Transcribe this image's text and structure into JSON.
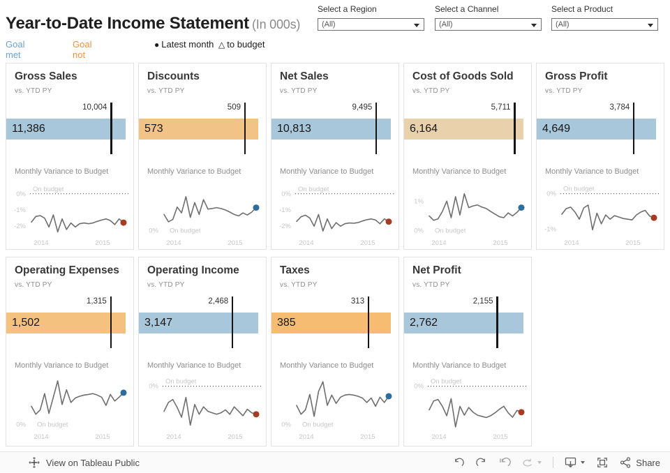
{
  "header": {
    "title": "Year-to-Date Income Statement",
    "subtitle": "(In 000s)",
    "legend": {
      "goal_met": "Goal met",
      "goal_not_met": "Goal not met",
      "latest_dot_glyph": "●",
      "latest_text": "Latest month",
      "latest_triangle_glyph": "△",
      "latest_suffix": "to budget"
    },
    "filters": [
      {
        "label": "Select a Region",
        "value": "(All)"
      },
      {
        "label": "Select a Channel",
        "value": "(All)"
      },
      {
        "label": "Select a Product",
        "value": "(All)"
      }
    ]
  },
  "palette": {
    "goal_met_text": "#6aa3d8",
    "goal_not_met_text": "#f5913d",
    "bar_blue": "#a9c7da",
    "spark_line": "#6e6e6e",
    "dot_red": "#a63c21",
    "dot_blue": "#2e6e9e",
    "axis_text": "#c6c6c6"
  },
  "chart_data": [
    {
      "type": "bullet+sparkline",
      "title": "Gross Sales",
      "compare_label": "vs. YTD PY",
      "bullet": {
        "value": 11386,
        "value_label": "11,386",
        "reference": 10004,
        "reference_label": "10,004",
        "bar_color": "#a9c7da",
        "status": "goal_met"
      },
      "sparkline": {
        "label": "Monthly Variance to Budget",
        "unit": "%",
        "ylim": [
          -2.55,
          0.55
        ],
        "zero": "top",
        "on_budget_label": "On budget",
        "ticks": [
          {
            "label": "0%",
            "value": 0
          },
          {
            "label": "-1%",
            "value": -1
          },
          {
            "label": "-2%",
            "value": -2
          }
        ],
        "x_labels": [
          "2014",
          "2015"
        ],
        "dot_color": "#a63c21",
        "values": [
          -1.75,
          -1.4,
          -1.35,
          -1.5,
          -2.05,
          -1.3,
          -2.35,
          -1.55,
          -2.2,
          -1.8,
          -2.05,
          -1.85,
          -1.8,
          -1.85,
          -1.8,
          -1.7,
          -1.62,
          -1.55,
          -1.65,
          -1.9,
          -1.55,
          -1.78
        ]
      }
    },
    {
      "type": "bullet+sparkline",
      "title": "Discounts",
      "compare_label": "vs. YTD PY",
      "bullet": {
        "value": 573,
        "value_label": "573",
        "reference": 509,
        "reference_label": "509",
        "bar_color": "#f2c386",
        "status": "goal_not_met"
      },
      "sparkline": {
        "label": "Monthly Variance to Budget",
        "unit": "%",
        "ylim": [
          -0.15,
          1.55
        ],
        "zero": "bottom",
        "on_budget_label": "On budget",
        "ticks": [
          {
            "label": "0%",
            "value": 0
          }
        ],
        "x_labels": [
          "2014",
          "2015"
        ],
        "dot_color": "#2e6e9e",
        "values": [
          0.55,
          0.3,
          0.38,
          0.8,
          0.6,
          1.15,
          0.45,
          0.95,
          0.55,
          1.05,
          0.73,
          0.75,
          0.78,
          0.75,
          0.7,
          0.63,
          0.55,
          0.5,
          0.6,
          0.53,
          0.63,
          0.78
        ]
      }
    },
    {
      "type": "bullet+sparkline",
      "title": "Net Sales",
      "compare_label": "vs. YTD PY",
      "bullet": {
        "value": 10813,
        "value_label": "10,813",
        "reference": 9495,
        "reference_label": "9,495",
        "bar_color": "#a9c7da",
        "status": "goal_met"
      },
      "sparkline": {
        "label": "Monthly Variance to Budget",
        "unit": "%",
        "ylim": [
          -2.55,
          0.55
        ],
        "zero": "top",
        "on_budget_label": "On budget",
        "ticks": [
          {
            "label": "0%",
            "value": 0
          },
          {
            "label": "-1%",
            "value": -1
          },
          {
            "label": "-2%",
            "value": -2
          }
        ],
        "x_labels": [
          "2014",
          "2015"
        ],
        "dot_color": "#a63c21",
        "values": [
          -1.7,
          -1.42,
          -1.32,
          -1.5,
          -2.0,
          -1.28,
          -2.3,
          -1.55,
          -2.15,
          -1.78,
          -2.0,
          -1.85,
          -1.8,
          -1.82,
          -1.78,
          -1.68,
          -1.6,
          -1.55,
          -1.62,
          -1.85,
          -1.55,
          -1.72
        ]
      }
    },
    {
      "type": "bullet+sparkline",
      "title": "Cost of Goods Sold",
      "compare_label": "vs. YTD PY",
      "bullet": {
        "value": 6164,
        "value_label": "6,164",
        "reference": 5711,
        "reference_label": "5,711",
        "bar_color": "#e9d1ab",
        "status": "goal_not_met"
      },
      "sparkline": {
        "label": "Monthly Variance to Budget",
        "unit": "%",
        "ylim": [
          -0.15,
          1.55
        ],
        "zero": "bottom",
        "on_budget_label": "On budget",
        "ticks": [
          {
            "label": "1%",
            "value": 1
          },
          {
            "label": "0%",
            "value": 0
          }
        ],
        "x_labels": [
          "2014",
          "2015"
        ],
        "dot_color": "#2e6e9e",
        "values": [
          0.5,
          0.35,
          0.4,
          0.65,
          1.0,
          0.44,
          1.15,
          0.53,
          1.25,
          0.78,
          0.84,
          0.87,
          0.8,
          0.75,
          0.65,
          0.56,
          0.47,
          0.44,
          0.6,
          0.5,
          0.62,
          0.78
        ]
      }
    },
    {
      "type": "bullet+sparkline",
      "title": "Gross Profit",
      "compare_label": "vs. YTD PY",
      "bullet": {
        "value": 4649,
        "value_label": "4,649",
        "reference": 3784,
        "reference_label": "3,784",
        "bar_color": "#a9c7da",
        "status": "goal_met"
      },
      "sparkline": {
        "label": "Monthly Variance to Budget",
        "unit": "%",
        "ylim": [
          -1.17,
          0.25
        ],
        "zero": "top",
        "on_budget_label": "On budget",
        "ticks": [
          {
            "label": "0%",
            "value": 0
          },
          {
            "label": "-1%",
            "value": -1
          }
        ],
        "x_labels": [
          "2014",
          "2015"
        ],
        "dot_color": "#a63c21",
        "values": [
          -0.58,
          -0.42,
          -0.38,
          -0.52,
          -0.72,
          -0.4,
          -0.32,
          -1.02,
          -0.55,
          -0.85,
          -0.6,
          -0.72,
          -0.62,
          -0.66,
          -0.7,
          -0.72,
          -0.74,
          -0.6,
          -0.52,
          -0.47,
          -0.63,
          -0.68
        ]
      }
    },
    {
      "type": "bullet+sparkline",
      "title": "Operating Expenses",
      "compare_label": "vs. YTD PY",
      "bullet": {
        "value": 1502,
        "value_label": "1,502",
        "reference": 1315,
        "reference_label": "1,315",
        "bar_color": "#f4c17e",
        "status": "goal_not_met"
      },
      "sparkline": {
        "label": "Monthly Variance to Budget",
        "unit": "%",
        "ylim": [
          -0.15,
          1.55
        ],
        "zero": "bottom",
        "on_budget_label": "On budget",
        "ticks": [
          {
            "label": "0%",
            "value": 0
          }
        ],
        "x_labels": [
          "2014",
          "2015"
        ],
        "dot_color": "#2e6e9e",
        "values": [
          0.62,
          0.35,
          0.5,
          1.05,
          0.38,
          0.93,
          1.48,
          0.68,
          1.18,
          0.75,
          0.9,
          0.96,
          1.0,
          1.02,
          1.05,
          1.0,
          0.93,
          0.65,
          1.02,
          0.8,
          0.93,
          1.08
        ]
      }
    },
    {
      "type": "bullet+sparkline",
      "title": "Operating Income",
      "compare_label": "vs. YTD PY",
      "bullet": {
        "value": 3147,
        "value_label": "3,147",
        "reference": 2468,
        "reference_label": "2,468",
        "bar_color": "#a9c7da",
        "status": "goal_met"
      },
      "sparkline": {
        "label": "Monthly Variance to Budget",
        "unit": "%",
        "ylim": [
          -1.45,
          0.25
        ],
        "zero": "top",
        "on_budget_label": "On budget",
        "ticks": [
          {
            "label": "0%",
            "value": 0
          }
        ],
        "x_labels": [
          "2014",
          "2015"
        ],
        "dot_color": "#a63c21",
        "values": [
          -0.85,
          -0.55,
          -0.45,
          -0.72,
          -1.05,
          -0.38,
          -1.32,
          -0.62,
          -0.95,
          -0.7,
          -0.85,
          -0.9,
          -0.95,
          -0.9,
          -0.8,
          -0.95,
          -0.7,
          -0.85,
          -1.0,
          -0.78,
          -0.9,
          -0.95
        ]
      }
    },
    {
      "type": "bullet+sparkline",
      "title": "Taxes",
      "compare_label": "vs. YTD PY",
      "bullet": {
        "value": 385,
        "value_label": "385",
        "reference": 313,
        "reference_label": "313",
        "bar_color": "#f6bc72",
        "status": "goal_not_met"
      },
      "sparkline": {
        "label": "Monthly Variance to Budget",
        "unit": "%",
        "ylim": [
          -0.15,
          1.55
        ],
        "zero": "bottom",
        "on_budget_label": "On budget",
        "ticks": [
          {
            "label": "0%",
            "value": 0
          }
        ],
        "x_labels": [
          "2014",
          "2015"
        ],
        "dot_color": "#2e6e9e",
        "values": [
          0.65,
          0.35,
          0.5,
          1.02,
          0.28,
          1.12,
          1.45,
          0.65,
          1.0,
          0.72,
          0.93,
          1.0,
          1.02,
          1.0,
          0.96,
          0.9,
          0.75,
          0.9,
          0.62,
          0.93,
          0.75,
          0.96
        ]
      }
    },
    {
      "type": "bullet+sparkline",
      "title": "Net Profit",
      "compare_label": "vs. YTD PY",
      "bullet": {
        "value": 2762,
        "value_label": "2,762",
        "reference": 2155,
        "reference_label": "2,155",
        "bar_color": "#a9c7da",
        "status": "goal_met"
      },
      "sparkline": {
        "label": "Monthly Variance to Budget",
        "unit": "%",
        "ylim": [
          -1.45,
          0.25
        ],
        "zero": "top",
        "on_budget_label": "On budget",
        "ticks": [
          {
            "label": "0%",
            "value": 0
          }
        ],
        "x_labels": [
          "2014",
          "2015"
        ],
        "dot_color": "#a63c21",
        "values": [
          -0.8,
          -0.5,
          -0.45,
          -0.68,
          -1.0,
          -0.42,
          -1.38,
          -0.68,
          -0.98,
          -0.72,
          -0.88,
          -0.98,
          -1.02,
          -1.06,
          -1.0,
          -0.9,
          -0.78,
          -0.68,
          -0.9,
          -1.05,
          -0.82,
          -0.88
        ]
      }
    }
  ],
  "footer": {
    "view_label": "View on Tableau Public",
    "share_label": "Share"
  }
}
